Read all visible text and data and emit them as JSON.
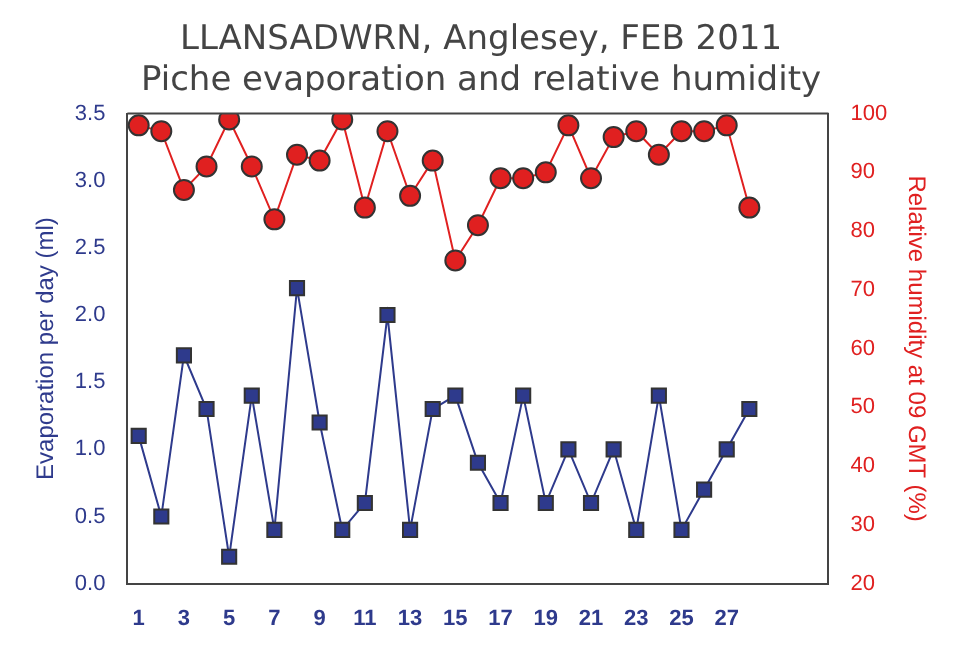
{
  "chart_data": {
    "type": "line",
    "title": [
      "LLANSADWRN, Anglesey, FEB 2011",
      "Piche evaporation and relative humidity"
    ],
    "xlabel": null,
    "ylabel": "Evaporation per day (ml)",
    "y2label": "Relative humidity at 09 GMT (%)",
    "x": [
      1,
      2,
      3,
      4,
      5,
      6,
      7,
      8,
      9,
      10,
      11,
      12,
      13,
      14,
      15,
      16,
      17,
      18,
      19,
      20,
      21,
      22,
      23,
      24,
      25,
      26,
      27,
      28
    ],
    "xlim": [
      0.5,
      31.5
    ],
    "xticks": [
      1,
      3,
      5,
      7,
      9,
      11,
      13,
      15,
      17,
      19,
      21,
      23,
      25,
      27
    ],
    "ylim": [
      0,
      3.5
    ],
    "yticks": [
      {
        "value": 0,
        "label": "0.0"
      },
      0.5,
      {
        "value": 1,
        "label": "1.0"
      },
      1.5,
      {
        "value": 2,
        "label": "2.0"
      },
      2.5,
      {
        "value": 3,
        "label": "3.0"
      },
      3.5
    ],
    "y2lim": [
      20,
      100
    ],
    "y2ticks": [
      20,
      30,
      40,
      50,
      60,
      70,
      80,
      90,
      100
    ],
    "series": [
      {
        "color": "#2e3a8c",
        "marker": "square",
        "values": [
          1.1,
          0.5,
          1.7,
          1.3,
          0.2,
          1.4,
          0.4,
          2.2,
          1.2,
          0.4,
          0.6,
          2.0,
          0.4,
          1.3,
          1.4,
          0.9,
          0.6,
          1.4,
          0.6,
          1.0,
          0.6,
          1.0,
          0.4,
          1.4,
          0.4,
          0.7,
          1.0,
          1.3
        ]
      },
      {
        "color": "#e02020",
        "marker": "circle",
        "axis": "y2",
        "values": [
          98,
          97,
          87,
          91,
          99,
          91,
          82,
          93,
          92,
          99,
          84,
          97,
          86,
          92,
          75,
          81,
          89,
          89,
          90,
          98,
          89,
          96,
          97,
          93,
          97,
          97,
          98,
          84
        ]
      }
    ],
    "grid": false,
    "legend": false
  }
}
